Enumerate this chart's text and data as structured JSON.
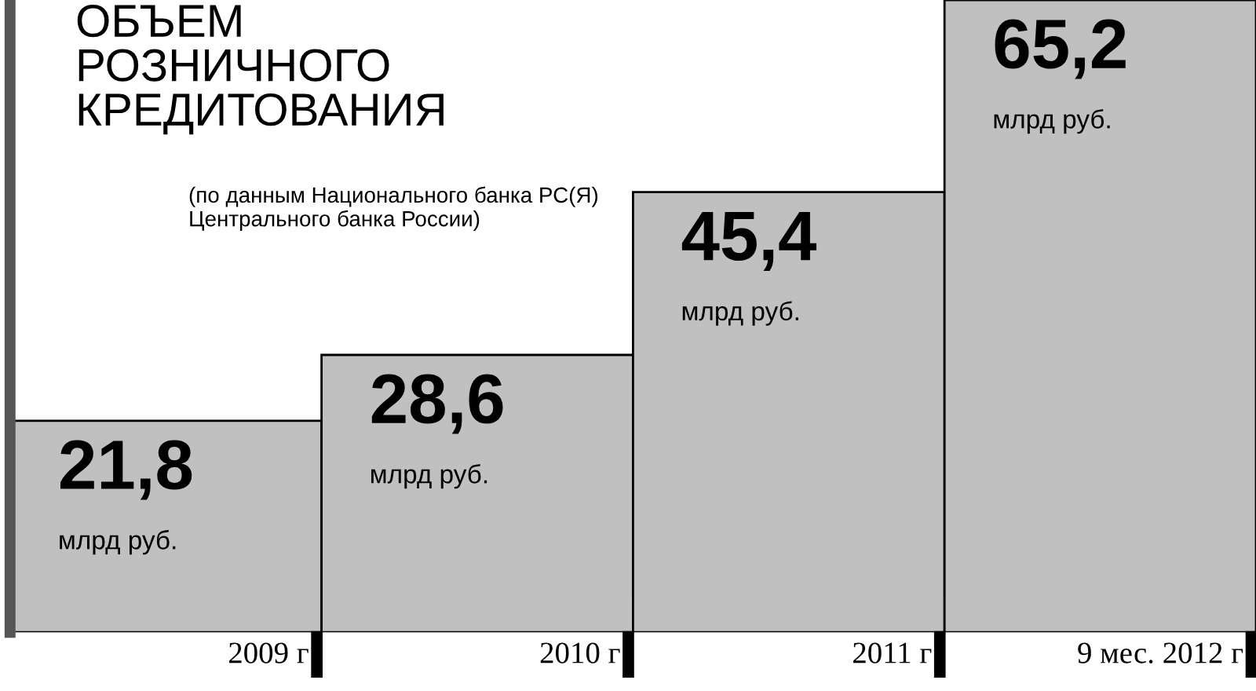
{
  "chart_data": {
    "type": "bar",
    "title": "ОБЪЕМ\nРОЗНИЧНОГО\nКРЕДИТОВАНИЯ",
    "subtitle": "(по данным Национального банка РС(Я)\nЦентрального банка России)",
    "categories": [
      "2009 г",
      "2010 г",
      "2011 г",
      "9 мес. 2012 г"
    ],
    "values": [
      21.8,
      28.6,
      45.4,
      65.2
    ],
    "value_labels": [
      "21,8",
      "28,6",
      "45,4",
      "65,2"
    ],
    "color": "#c0c0c0",
    "annotations": [
      "млрд руб.",
      "млрд руб.",
      "млрд руб.",
      "млрд руб."
    ]
  }
}
